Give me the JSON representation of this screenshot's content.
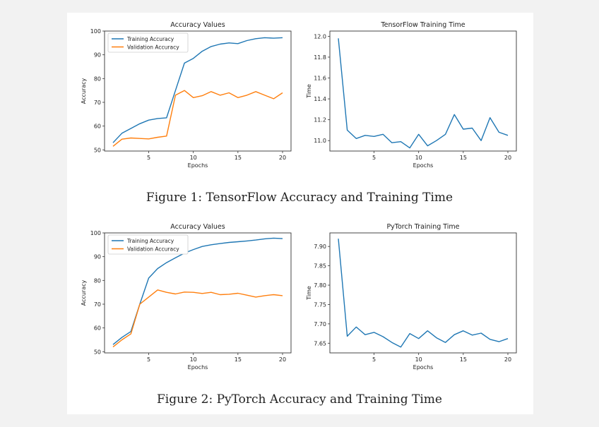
{
  "figures": [
    {
      "caption": "Figure 1: TensorFlow Accuracy and Training Time"
    },
    {
      "caption": "Figure 2: PyTorch Accuracy and Training Time"
    }
  ],
  "colors": {
    "train": "#1f77b4",
    "val": "#ff7f0e",
    "time": "#1f77b4"
  },
  "chart_data": [
    {
      "type": "line",
      "title": "Accuracy Values",
      "xlabel": "Epochs",
      "ylabel": "Accuracy",
      "xticks": [
        5,
        10,
        15,
        20
      ],
      "yticks": [
        50,
        60,
        70,
        80,
        90,
        100
      ],
      "xlim": [
        0.05,
        20.95
      ],
      "ylim": [
        49.5,
        100
      ],
      "legend": "top-left",
      "x": [
        1,
        2,
        3,
        4,
        5,
        6,
        7,
        8,
        9,
        10,
        11,
        12,
        13,
        14,
        15,
        16,
        17,
        18,
        19,
        20
      ],
      "series": [
        {
          "name": "Training Accuracy",
          "values": [
            53,
            57,
            59,
            61,
            62.5,
            63.2,
            63.5,
            75,
            86.5,
            88.5,
            91.5,
            93.5,
            94.5,
            95,
            94.7,
            96,
            96.8,
            97.2,
            97.0,
            97.2
          ]
        },
        {
          "name": "Validation Accuracy",
          "values": [
            51.5,
            54.5,
            55,
            54.8,
            54.6,
            55.3,
            55.8,
            73,
            75,
            72,
            72.8,
            74.5,
            73,
            74,
            72,
            73,
            74.5,
            73,
            71.5,
            74
          ]
        }
      ]
    },
    {
      "type": "line",
      "title": "TensorFlow Training Time",
      "xlabel": "Epochs",
      "ylabel": "Time",
      "xticks": [
        5,
        10,
        15,
        20
      ],
      "yticks": [
        "11.0",
        "11.2",
        "11.4",
        "11.6",
        "11.8",
        "12.0"
      ],
      "xlim": [
        0.05,
        20.95
      ],
      "ylim": [
        10.9,
        12.05
      ],
      "x": [
        1,
        2,
        3,
        4,
        5,
        6,
        7,
        8,
        9,
        10,
        11,
        12,
        13,
        14,
        15,
        16,
        17,
        18,
        19,
        20
      ],
      "series": [
        {
          "values": [
            11.98,
            11.1,
            11.02,
            11.05,
            11.04,
            11.06,
            10.98,
            10.99,
            10.93,
            11.06,
            10.95,
            11.0,
            11.06,
            11.25,
            11.11,
            11.12,
            11.0,
            11.22,
            11.08,
            11.05
          ]
        }
      ]
    },
    {
      "type": "line",
      "title": "Accuracy Values",
      "xlabel": "Epochs",
      "ylabel": "Accuracy",
      "xticks": [
        5,
        10,
        15,
        20
      ],
      "yticks": [
        50,
        60,
        70,
        80,
        90,
        100
      ],
      "xlim": [
        0.05,
        20.95
      ],
      "ylim": [
        49.5,
        100
      ],
      "legend": "top-left",
      "x": [
        1,
        2,
        3,
        4,
        5,
        6,
        7,
        8,
        9,
        10,
        11,
        12,
        13,
        14,
        15,
        16,
        17,
        18,
        19,
        20
      ],
      "series": [
        {
          "name": "Training Accuracy",
          "values": [
            53,
            56,
            58.5,
            70,
            81,
            85,
            87.5,
            89.5,
            91.5,
            93,
            94.3,
            95,
            95.5,
            96,
            96.3,
            96.6,
            97,
            97.5,
            97.8,
            97.6
          ]
        },
        {
          "name": "Validation Accuracy",
          "values": [
            52,
            55,
            57.5,
            70,
            73,
            76,
            75,
            74.3,
            75.1,
            75,
            74.5,
            75,
            74,
            74.2,
            74.6,
            73.8,
            73,
            73.6,
            74,
            73.6
          ]
        }
      ]
    },
    {
      "type": "line",
      "title": "PyTorch Training Time",
      "xlabel": "Epochs",
      "ylabel": "Time",
      "xticks": [
        5,
        10,
        15,
        20
      ],
      "yticks": [
        "7.65",
        "7.70",
        "7.75",
        "7.80",
        "7.85",
        "7.90"
      ],
      "xlim": [
        0.05,
        20.95
      ],
      "ylim": [
        7.625,
        7.935
      ],
      "x": [
        1,
        2,
        3,
        4,
        5,
        6,
        7,
        8,
        9,
        10,
        11,
        12,
        13,
        14,
        15,
        16,
        17,
        18,
        19,
        20
      ],
      "series": [
        {
          "values": [
            7.92,
            7.668,
            7.692,
            7.672,
            7.678,
            7.667,
            7.652,
            7.64,
            7.675,
            7.662,
            7.682,
            7.664,
            7.652,
            7.672,
            7.682,
            7.671,
            7.676,
            7.66,
            7.654,
            7.662
          ]
        }
      ]
    }
  ]
}
